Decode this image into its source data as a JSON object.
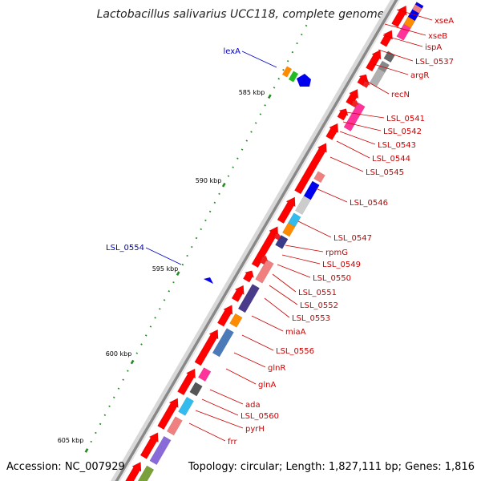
{
  "title": "Lactobacillus salivarius UCC118, complete genome",
  "accession": "Accession: NC_007929",
  "topology": "Topology: circular; Length: 1,827,111 bp; Genes: 1,816",
  "colors": {
    "forward_label": "#cc0000",
    "reverse_label": "#0000cc",
    "cds_arrow": "#ff0000",
    "tick": "#228b22",
    "backbone_dark": "#888888",
    "backbone_light": "#d8d8d8"
  },
  "ruler_labels": [
    "585 kbp",
    "590 kbp",
    "595 kbp",
    "600 kbp",
    "605 kbp"
  ],
  "reverse_genes": [
    {
      "name": "lexA",
      "color": "#0000cc"
    },
    {
      "name": "LSL_0554",
      "color": "#0000cc"
    }
  ],
  "forward_genes": [
    {
      "name": "xseA"
    },
    {
      "name": "xseB"
    },
    {
      "name": "ispA"
    },
    {
      "name": "LSL_0537"
    },
    {
      "name": "argR"
    },
    {
      "name": "recN"
    },
    {
      "name": "LSL_0541"
    },
    {
      "name": "LSL_0542"
    },
    {
      "name": "LSL_0543"
    },
    {
      "name": "LSL_0544"
    },
    {
      "name": "LSL_0545"
    },
    {
      "name": "LSL_0546"
    },
    {
      "name": "LSL_0547"
    },
    {
      "name": "rpmG"
    },
    {
      "name": "LSL_0549"
    },
    {
      "name": "LSL_0550"
    },
    {
      "name": "LSL_0551"
    },
    {
      "name": "LSL_0552"
    },
    {
      "name": "LSL_0553"
    },
    {
      "name": "miaA"
    },
    {
      "name": "LSL_0556"
    },
    {
      "name": "glnR"
    },
    {
      "name": "glnA"
    },
    {
      "name": "ada"
    },
    {
      "name": "LSL_0560"
    },
    {
      "name": "pyrH"
    },
    {
      "name": "frr"
    }
  ]
}
